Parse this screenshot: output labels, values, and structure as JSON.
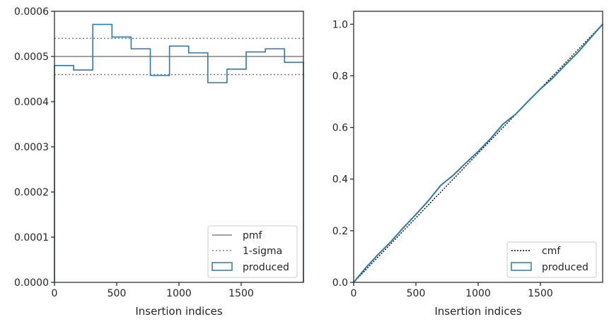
{
  "colors": {
    "produced": "#2a7bb4",
    "pmf": "#808080",
    "sigma": "#808080",
    "cmf": "#000000",
    "axes": "#262626"
  },
  "chart_data": [
    {
      "type": "histogram",
      "xlabel": "Insertion indices",
      "ylabel": "",
      "xlim": [
        0,
        2000
      ],
      "ylim": [
        0,
        0.0006
      ],
      "xticks": [
        0,
        500,
        1000,
        1500
      ],
      "xtick_labels": [
        "0",
        "500",
        "1000",
        "1500"
      ],
      "yticks": [
        0,
        0.0001,
        0.0002,
        0.0003,
        0.0004,
        0.0005,
        0.0006
      ],
      "ytick_labels": [
        "0.0000",
        "0.0001",
        "0.0002",
        "0.0003",
        "0.0004",
        "0.0005",
        "0.0006"
      ],
      "grid": false,
      "legend_position": "lower-right",
      "legend": [
        "pmf",
        "1-sigma",
        "produced"
      ],
      "pmf": 0.0005,
      "sigma_band": [
        0.00046,
        0.00054
      ],
      "produced": {
        "bin_edges": [
          0,
          154,
          308,
          462,
          616,
          770,
          924,
          1078,
          1232,
          1386,
          1540,
          1694,
          1848,
          2000
        ],
        "values": [
          0.00048,
          0.00047,
          0.000571,
          0.000543,
          0.000517,
          0.000458,
          0.000523,
          0.000508,
          0.000442,
          0.000472,
          0.00051,
          0.000517,
          0.000487
        ]
      }
    },
    {
      "type": "line",
      "xlabel": "Insertion indices",
      "ylabel": "",
      "xlim": [
        0,
        2000
      ],
      "ylim": [
        0,
        1.05
      ],
      "xticks": [
        0,
        500,
        1000,
        1500
      ],
      "xtick_labels": [
        "0",
        "500",
        "1000",
        "1500"
      ],
      "yticks": [
        0,
        0.2,
        0.4,
        0.6,
        0.8,
        1.0
      ],
      "ytick_labels": [
        "0.0",
        "0.2",
        "0.4",
        "0.6",
        "0.8",
        "1.0"
      ],
      "grid": false,
      "legend_position": "lower-right",
      "legend": [
        "cmf",
        "produced"
      ],
      "cmf": {
        "x": [
          0,
          2000
        ],
        "y": [
          0,
          1.0
        ]
      },
      "produced": {
        "x": [
          0,
          100,
          200,
          300,
          400,
          500,
          600,
          700,
          800,
          900,
          1000,
          1100,
          1200,
          1300,
          1400,
          1500,
          1600,
          1700,
          1800,
          1900,
          2000
        ],
        "y": [
          0,
          0.058,
          0.11,
          0.158,
          0.212,
          0.263,
          0.316,
          0.376,
          0.415,
          0.462,
          0.507,
          0.557,
          0.613,
          0.651,
          0.701,
          0.749,
          0.792,
          0.842,
          0.89,
          0.945,
          1.0
        ]
      }
    }
  ]
}
